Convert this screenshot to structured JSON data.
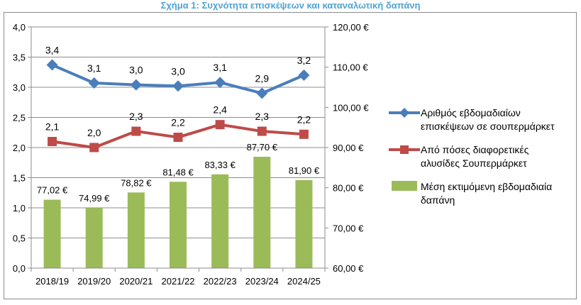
{
  "chart_data": {
    "type": "bar+line",
    "title": "Σχήμα 1: Συχνότητα επισκέψεων και καταναλωτική δαπάνη",
    "categories": [
      "2018/19",
      "2019/20",
      "2020/21",
      "2021/22",
      "2022/23",
      "2023/24",
      "2024/25"
    ],
    "left_axis": {
      "min": 0,
      "max": 4,
      "step": 0.5,
      "tick_labels": [
        "0,0",
        "0,5",
        "1,0",
        "1,5",
        "2,0",
        "2,5",
        "3,0",
        "3,5",
        "4,0"
      ]
    },
    "right_axis": {
      "min": 60,
      "max": 120,
      "step": 10,
      "tick_labels": [
        "60,00 €",
        "70,00 €",
        "80,00 €",
        "90,00 €",
        "100,00 €",
        "110,00 €",
        "120,00 €"
      ]
    },
    "grid": true,
    "legend_position": "right",
    "series": [
      {
        "name": "Αριθμός εβδομαδιαίων επισκέψεων σε σουπερμάρκετ",
        "legend_lines": [
          "Αριθμός εβδομαδιαίων",
          "επισκέψεων σε σουπερμάρκετ"
        ],
        "kind": "line",
        "marker": "diamond",
        "axis": "left",
        "color": "#4a7ebb",
        "values": [
          3.4,
          3.1,
          3.0,
          3.0,
          3.1,
          2.9,
          3.2
        ],
        "plot_values": [
          3.37,
          3.07,
          3.04,
          3.02,
          3.08,
          2.9,
          3.2
        ],
        "labels": [
          "3,4",
          "3,1",
          "3,0",
          "3,0",
          "3,1",
          "2,9",
          "3,2"
        ]
      },
      {
        "name": "Από πόσες διαφορετικές αλυσίδες Σουπερμάρκετ",
        "legend_lines": [
          "Από πόσες διαφορετικές",
          "αλυσίδες Σουπερμάρκετ"
        ],
        "kind": "line",
        "marker": "square",
        "axis": "left",
        "color": "#be4b48",
        "values": [
          2.1,
          2.0,
          2.3,
          2.2,
          2.4,
          2.3,
          2.2
        ],
        "plot_values": [
          2.1,
          2.0,
          2.27,
          2.17,
          2.38,
          2.27,
          2.22
        ],
        "labels": [
          "2,1",
          "2,0",
          "2,3",
          "2,2",
          "2,4",
          "2,3",
          "2,2"
        ]
      },
      {
        "name": "Μέση εκτιμόμενη εβδομαδιαία δαπάνη",
        "legend_lines": [
          "Μέση εκτιμόμενη εβδομαδιαία",
          "δαπάνη"
        ],
        "kind": "bar",
        "axis": "right",
        "color": "#9bbb59",
        "values": [
          77.02,
          74.99,
          78.82,
          81.48,
          83.33,
          87.7,
          81.9
        ],
        "labels": [
          "77,02 €",
          "74,99 €",
          "78,82 €",
          "81,48 €",
          "83,33 €",
          "87,70 €",
          "81,90 €"
        ]
      }
    ]
  }
}
